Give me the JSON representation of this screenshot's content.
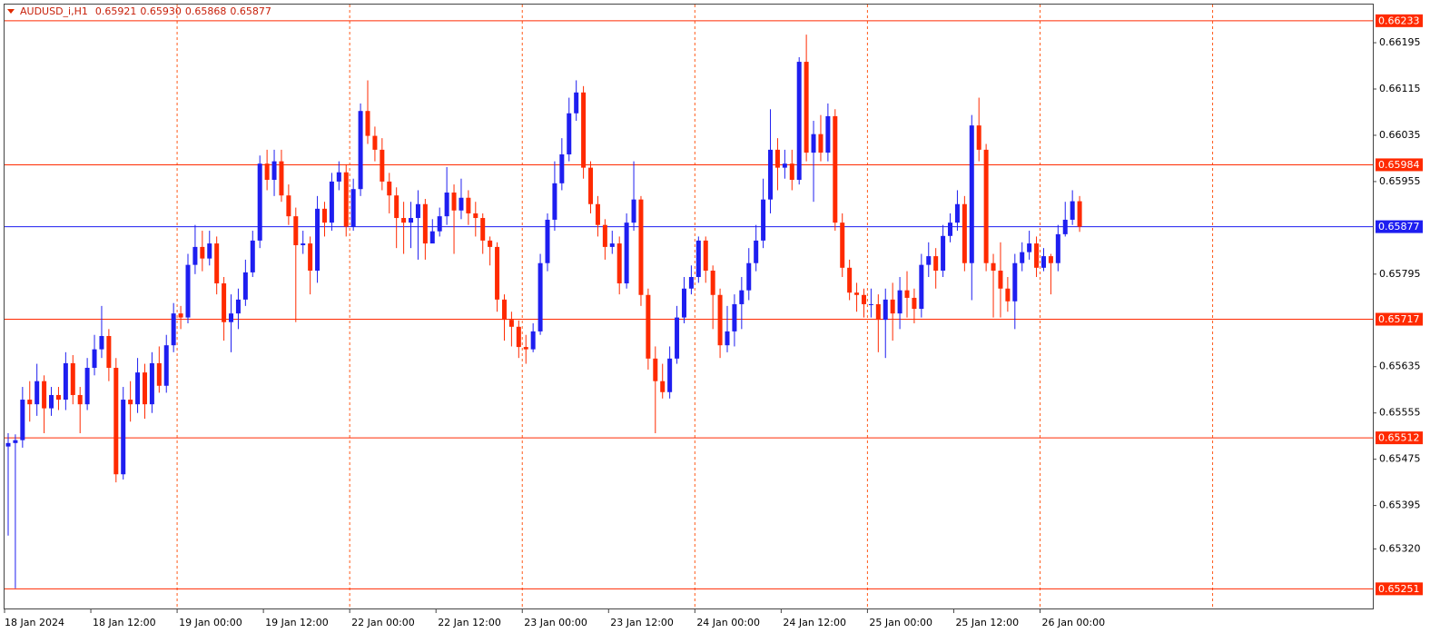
{
  "chart_data": {
    "type": "candlestick",
    "symbol": "AUDUSD_i,H1",
    "header_prices": [
      "0.65921",
      "0.65930",
      "0.65868",
      "0.65877"
    ],
    "up_color": "#1e1ef0",
    "down_color": "#ff2a00",
    "ylim": [
      0.65217,
      0.66261
    ],
    "yticks": [
      0.66195,
      0.66115,
      0.66035,
      0.65955,
      0.65795,
      0.65635,
      0.65555,
      0.65475,
      0.65395,
      {
        "value": 0.6532,
        "label": "0.65320"
      }
    ],
    "levels": [
      {
        "value": 0.66233,
        "color": "#ff2a00"
      },
      {
        "value": 0.65984,
        "color": "#ff2a00"
      },
      {
        "value": 0.65717,
        "color": "#ff2a00"
      },
      {
        "value": 0.65512,
        "color": "#ff2a00"
      },
      {
        "value": 0.65251,
        "color": "#ff2a00"
      }
    ],
    "current_price": {
      "value": 0.65877,
      "color": "#1e1ef0"
    },
    "categories": [
      "18 Jan 2024",
      null,
      null,
      null,
      null,
      null,
      null,
      null,
      null,
      null,
      null,
      null,
      "18 Jan 12:00",
      null,
      null,
      null,
      null,
      null,
      null,
      null,
      null,
      null,
      null,
      null,
      "19 Jan 00:00",
      null,
      null,
      null,
      null,
      null,
      null,
      null,
      null,
      null,
      null,
      null,
      "19 Jan 12:00",
      null,
      null,
      null,
      null,
      null,
      null,
      null,
      null,
      null,
      null,
      null,
      "22 Jan 00:00",
      null,
      null,
      null,
      null,
      null,
      null,
      null,
      null,
      null,
      null,
      null,
      "22 Jan 12:00",
      null,
      null,
      null,
      null,
      null,
      null,
      null,
      null,
      null,
      null,
      null,
      "23 Jan 00:00",
      null,
      null,
      null,
      null,
      null,
      null,
      null,
      null,
      null,
      null,
      null,
      "23 Jan 12:00",
      null,
      null,
      null,
      null,
      null,
      null,
      null,
      null,
      null,
      null,
      null,
      "24 Jan 00:00",
      null,
      null,
      null,
      null,
      null,
      null,
      null,
      null,
      null,
      null,
      null,
      "24 Jan 12:00",
      null,
      null,
      null,
      null,
      null,
      null,
      null,
      null,
      null,
      null,
      null,
      "25 Jan 00:00",
      null,
      null,
      null,
      null,
      null,
      null,
      null,
      null,
      null,
      null,
      null,
      "25 Jan 12:00",
      null,
      null,
      null,
      null,
      null,
      null,
      null,
      null,
      null,
      null,
      null,
      "26 Jan 00:00",
      null,
      null,
      null,
      null,
      null
    ],
    "ohlc": [
      [
        0.65497,
        0.6552,
        0.65343,
        0.65503
      ],
      [
        0.65503,
        0.65518,
        0.65252,
        0.65508
      ],
      [
        0.65508,
        0.656,
        0.65495,
        0.65578
      ],
      [
        0.65578,
        0.6561,
        0.6554,
        0.6557
      ],
      [
        0.6557,
        0.6564,
        0.6555,
        0.6561
      ],
      [
        0.6561,
        0.6562,
        0.6552,
        0.65563
      ],
      [
        0.65563,
        0.656,
        0.6555,
        0.65586
      ],
      [
        0.65586,
        0.656,
        0.6556,
        0.65578
      ],
      [
        0.65578,
        0.6566,
        0.6556,
        0.65641
      ],
      [
        0.65641,
        0.65655,
        0.6557,
        0.65586
      ],
      [
        0.65586,
        0.656,
        0.6552,
        0.6557
      ],
      [
        0.6557,
        0.6565,
        0.6556,
        0.65633
      ],
      [
        0.65633,
        0.6569,
        0.6562,
        0.65665
      ],
      [
        0.65665,
        0.6574,
        0.6565,
        0.65688
      ],
      [
        0.65688,
        0.657,
        0.6561,
        0.65633
      ],
      [
        0.65633,
        0.6565,
        0.65435,
        0.65449
      ],
      [
        0.65449,
        0.656,
        0.6544,
        0.65578
      ],
      [
        0.65578,
        0.6561,
        0.6554,
        0.6557
      ],
      [
        0.6557,
        0.6565,
        0.65555,
        0.65625
      ],
      [
        0.65625,
        0.6564,
        0.65545,
        0.6557
      ],
      [
        0.6557,
        0.6566,
        0.65555,
        0.65641
      ],
      [
        0.65641,
        0.6567,
        0.6559,
        0.65602
      ],
      [
        0.65602,
        0.6569,
        0.6559,
        0.65672
      ],
      [
        0.65672,
        0.65745,
        0.6566,
        0.65727
      ],
      [
        0.65727,
        0.6574,
        0.657,
        0.6572
      ],
      [
        0.6572,
        0.6583,
        0.6571,
        0.65811
      ],
      [
        0.65811,
        0.6588,
        0.65795,
        0.65842
      ],
      [
        0.65842,
        0.6587,
        0.658,
        0.65822
      ],
      [
        0.65822,
        0.6587,
        0.6581,
        0.65848
      ],
      [
        0.65848,
        0.6586,
        0.6576,
        0.65779
      ],
      [
        0.65779,
        0.6579,
        0.6568,
        0.65712
      ],
      [
        0.65712,
        0.6576,
        0.6566,
        0.65727
      ],
      [
        0.65727,
        0.6577,
        0.657,
        0.65751
      ],
      [
        0.65751,
        0.6582,
        0.6574,
        0.65798
      ],
      [
        0.65798,
        0.6587,
        0.6579,
        0.65853
      ],
      [
        0.65853,
        0.66,
        0.6584,
        0.65986
      ],
      [
        0.65986,
        0.6601,
        0.6594,
        0.65958
      ],
      [
        0.65958,
        0.6601,
        0.6593,
        0.6599
      ],
      [
        0.6599,
        0.6601,
        0.6592,
        0.65931
      ],
      [
        0.65931,
        0.6595,
        0.6588,
        0.65895
      ],
      [
        0.65895,
        0.6591,
        0.65712,
        0.65845
      ],
      [
        0.65845,
        0.6587,
        0.6583,
        0.65848
      ],
      [
        0.65848,
        0.6586,
        0.6576,
        0.65801
      ],
      [
        0.65801,
        0.6593,
        0.6578,
        0.65908
      ],
      [
        0.65908,
        0.6592,
        0.6586,
        0.65884
      ],
      [
        0.65884,
        0.6597,
        0.6587,
        0.65955
      ],
      [
        0.65955,
        0.6599,
        0.6594,
        0.65971
      ],
      [
        0.65971,
        0.65985,
        0.6586,
        0.65877
      ],
      [
        0.65877,
        0.6596,
        0.6587,
        0.65942
      ],
      [
        0.65942,
        0.6609,
        0.6593,
        0.66077
      ],
      [
        0.66077,
        0.6613,
        0.6602,
        0.66034
      ],
      [
        0.66034,
        0.6605,
        0.6599,
        0.6601
      ],
      [
        0.6601,
        0.6603,
        0.6594,
        0.65955
      ],
      [
        0.65955,
        0.6597,
        0.659,
        0.65931
      ],
      [
        0.65931,
        0.65945,
        0.6584,
        0.65892
      ],
      [
        0.65892,
        0.6592,
        0.6583,
        0.65884
      ],
      [
        0.65884,
        0.6592,
        0.6584,
        0.65892
      ],
      [
        0.65892,
        0.6594,
        0.6582,
        0.65916
      ],
      [
        0.65916,
        0.65925,
        0.6582,
        0.65848
      ],
      [
        0.65848,
        0.6589,
        0.6585,
        0.65869
      ],
      [
        0.65869,
        0.6591,
        0.6586,
        0.65895
      ],
      [
        0.65895,
        0.6598,
        0.6588,
        0.65936
      ],
      [
        0.65936,
        0.6595,
        0.6583,
        0.65905
      ],
      [
        0.65905,
        0.6596,
        0.6589,
        0.65927
      ],
      [
        0.65927,
        0.6594,
        0.6588,
        0.659
      ],
      [
        0.659,
        0.6592,
        0.6586,
        0.65892
      ],
      [
        0.65892,
        0.659,
        0.6583,
        0.65853
      ],
      [
        0.65853,
        0.6586,
        0.6581,
        0.65842
      ],
      [
        0.65842,
        0.6585,
        0.6573,
        0.65751
      ],
      [
        0.65751,
        0.6576,
        0.6568,
        0.65716
      ],
      [
        0.65716,
        0.6573,
        0.6567,
        0.65704
      ],
      [
        0.65704,
        0.65715,
        0.6565,
        0.65669
      ],
      [
        0.65669,
        0.6569,
        0.6564,
        0.65665
      ],
      [
        0.65665,
        0.6571,
        0.6566,
        0.65696
      ],
      [
        0.65696,
        0.6583,
        0.6569,
        0.65814
      ],
      [
        0.65814,
        0.659,
        0.658,
        0.65889
      ],
      [
        0.65889,
        0.6599,
        0.6587,
        0.65952
      ],
      [
        0.65952,
        0.6603,
        0.6594,
        0.66002
      ],
      [
        0.66002,
        0.661,
        0.6599,
        0.66073
      ],
      [
        0.66073,
        0.6613,
        0.6606,
        0.66109
      ],
      [
        0.66109,
        0.6612,
        0.6596,
        0.65979
      ],
      [
        0.65979,
        0.6599,
        0.659,
        0.65916
      ],
      [
        0.65916,
        0.6593,
        0.6586,
        0.6588
      ],
      [
        0.6588,
        0.6589,
        0.6582,
        0.65842
      ],
      [
        0.65842,
        0.6587,
        0.6583,
        0.65848
      ],
      [
        0.65848,
        0.6586,
        0.6576,
        0.65779
      ],
      [
        0.65779,
        0.659,
        0.6577,
        0.65884
      ],
      [
        0.65884,
        0.6599,
        0.6587,
        0.65924
      ],
      [
        0.65924,
        0.6593,
        0.6574,
        0.65759
      ],
      [
        0.65759,
        0.6577,
        0.6563,
        0.65649
      ],
      [
        0.65649,
        0.6567,
        0.6552,
        0.6561
      ],
      [
        0.6561,
        0.6564,
        0.6558,
        0.65591
      ],
      [
        0.65591,
        0.6567,
        0.6558,
        0.65649
      ],
      [
        0.65649,
        0.6574,
        0.6564,
        0.6572
      ],
      [
        0.6572,
        0.6579,
        0.6571,
        0.6577
      ],
      [
        0.6577,
        0.6581,
        0.6576,
        0.6579
      ],
      [
        0.6579,
        0.6586,
        0.6578,
        0.65853
      ],
      [
        0.65853,
        0.6586,
        0.6578,
        0.65801
      ],
      [
        0.65801,
        0.6581,
        0.657,
        0.65759
      ],
      [
        0.65759,
        0.6577,
        0.6565,
        0.65672
      ],
      [
        0.65672,
        0.6574,
        0.6566,
        0.65696
      ],
      [
        0.65696,
        0.6576,
        0.6567,
        0.65743
      ],
      [
        0.65743,
        0.6579,
        0.657,
        0.65767
      ],
      [
        0.65767,
        0.6584,
        0.6575,
        0.65814
      ],
      [
        0.65814,
        0.6588,
        0.658,
        0.65853
      ],
      [
        0.65853,
        0.6596,
        0.6584,
        0.65924
      ],
      [
        0.65924,
        0.6608,
        0.659,
        0.6601
      ],
      [
        0.6601,
        0.6603,
        0.6594,
        0.65979
      ],
      [
        0.65979,
        0.6601,
        0.6596,
        0.65986
      ],
      [
        0.65986,
        0.6601,
        0.6594,
        0.65958
      ],
      [
        0.65958,
        0.6617,
        0.6595,
        0.66162
      ],
      [
        0.66162,
        0.66209,
        0.6599,
        0.66005
      ],
      [
        0.66005,
        0.6606,
        0.6592,
        0.66037
      ],
      [
        0.66037,
        0.6607,
        0.6599,
        0.66005
      ],
      [
        0.66005,
        0.6609,
        0.6599,
        0.66068
      ],
      [
        0.66068,
        0.6608,
        0.6587,
        0.65884
      ],
      [
        0.65884,
        0.659,
        0.6579,
        0.65806
      ],
      [
        0.65806,
        0.6582,
        0.6575,
        0.65763
      ],
      [
        0.65763,
        0.6578,
        0.6573,
        0.65759
      ],
      [
        0.65759,
        0.6577,
        0.6572,
        0.65743
      ],
      [
        0.65743,
        0.6577,
        0.6572,
        0.65743
      ],
      [
        0.65743,
        0.6576,
        0.6566,
        0.65716
      ],
      [
        0.65716,
        0.6577,
        0.6565,
        0.65751
      ],
      [
        0.65751,
        0.6578,
        0.6568,
        0.65727
      ],
      [
        0.65727,
        0.6579,
        0.657,
        0.65767
      ],
      [
        0.65767,
        0.658,
        0.6572,
        0.65754
      ],
      [
        0.65754,
        0.6577,
        0.6571,
        0.65735
      ],
      [
        0.65735,
        0.6583,
        0.6572,
        0.65811
      ],
      [
        0.65811,
        0.6585,
        0.6579,
        0.65826
      ],
      [
        0.65826,
        0.6584,
        0.6577,
        0.65801
      ],
      [
        0.65801,
        0.6588,
        0.6579,
        0.65861
      ],
      [
        0.65861,
        0.659,
        0.6585,
        0.65884
      ],
      [
        0.65884,
        0.6594,
        0.6587,
        0.65916
      ],
      [
        0.65916,
        0.6593,
        0.658,
        0.65814
      ],
      [
        0.65814,
        0.6607,
        0.6575,
        0.66052
      ],
      [
        0.66052,
        0.661,
        0.6599,
        0.6601
      ],
      [
        0.6601,
        0.6602,
        0.658,
        0.65814
      ],
      [
        0.65814,
        0.6583,
        0.6572,
        0.65801
      ],
      [
        0.65801,
        0.6585,
        0.6572,
        0.6577
      ],
      [
        0.6577,
        0.6579,
        0.6573,
        0.65748
      ],
      [
        0.65748,
        0.6583,
        0.657,
        0.65814
      ],
      [
        0.65814,
        0.6585,
        0.658,
        0.65833
      ],
      [
        0.65833,
        0.6587,
        0.6582,
        0.65848
      ],
      [
        0.65848,
        0.6586,
        0.6579,
        0.65806
      ],
      [
        0.65806,
        0.6584,
        0.658,
        0.65826
      ],
      [
        0.65826,
        0.6583,
        0.6576,
        0.65814
      ],
      [
        0.65814,
        0.6588,
        0.658,
        0.65864
      ],
      [
        0.65864,
        0.6592,
        0.6586,
        0.65889
      ],
      [
        0.65889,
        0.6594,
        0.6588,
        0.65921
      ],
      [
        0.65921,
        0.6593,
        0.65868,
        0.65877
      ]
    ]
  }
}
